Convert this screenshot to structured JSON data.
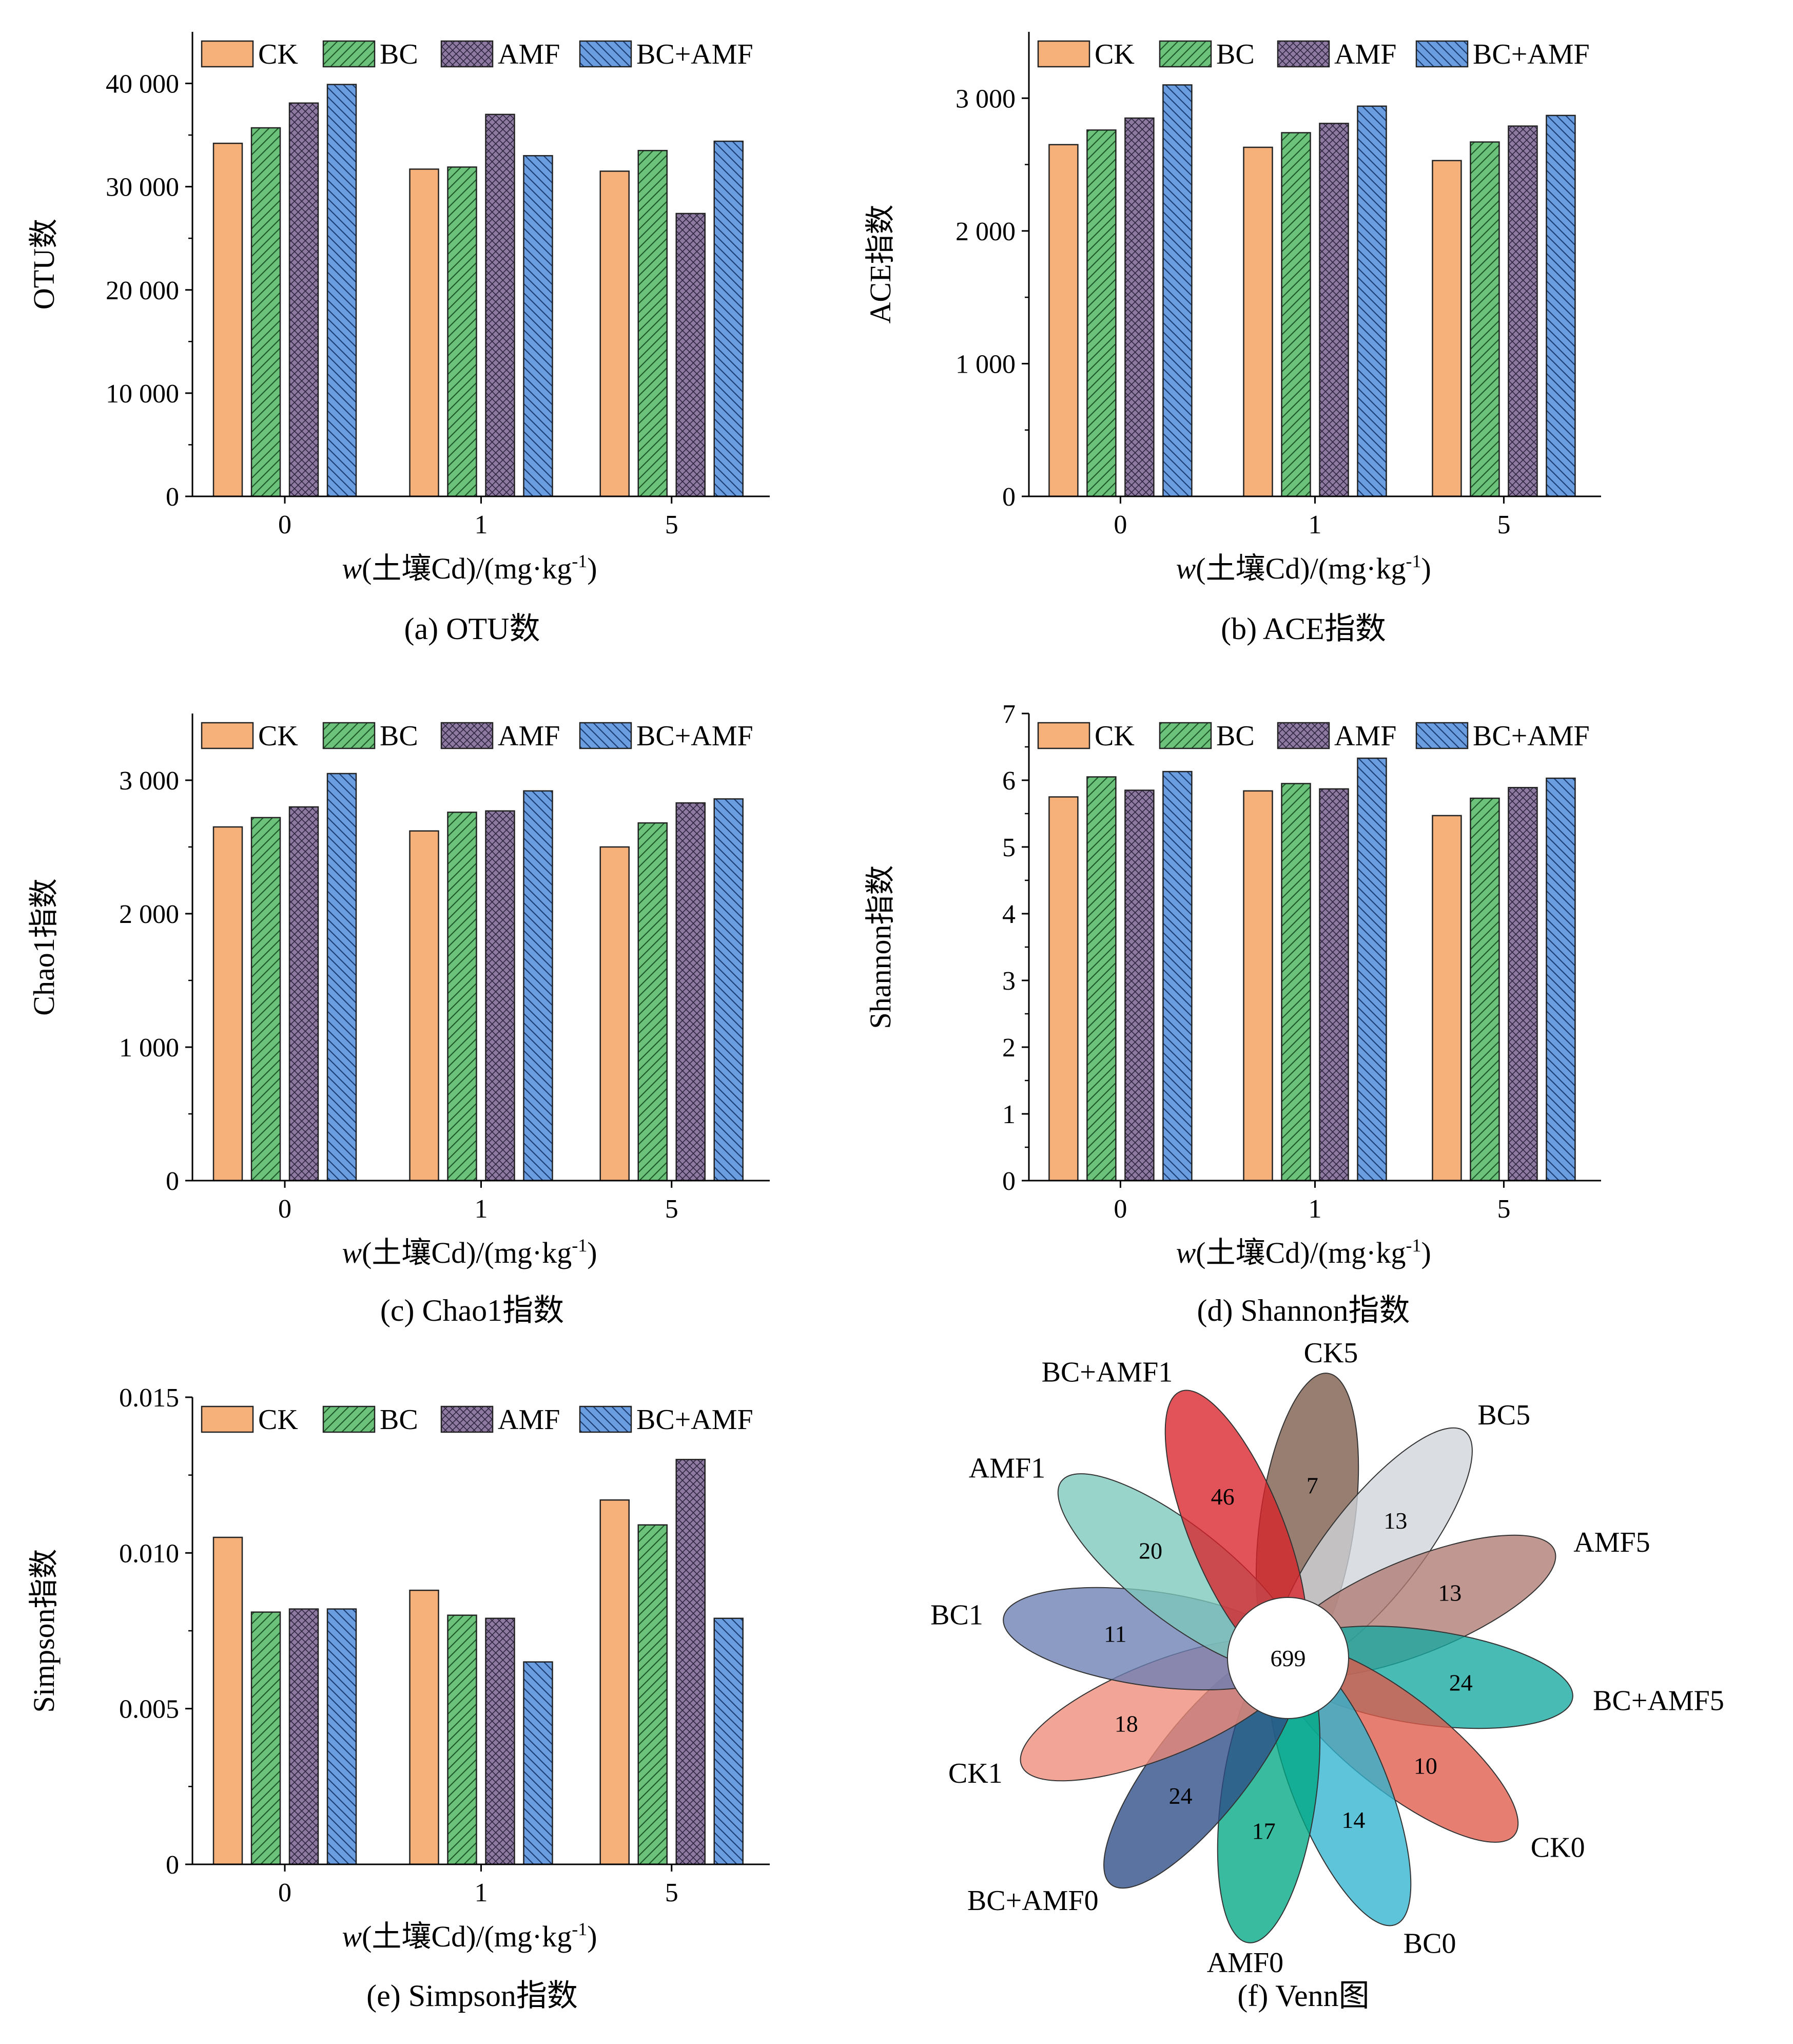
{
  "colors": {
    "CK": "#f6b07a",
    "BC": "#6cc27b",
    "AMF": "#8e7aa0",
    "BC+AMF": "#6b9ee0"
  },
  "legend": [
    "CK",
    "BC",
    "AMF",
    "BC+AMF"
  ],
  "xlabel": {
    "var": "w",
    "text": "(土壤Cd)/(mg·kg",
    "sup": "-1",
    "close": ")"
  },
  "chart_data": [
    {
      "type": "bar",
      "caption": "(a) OTU数",
      "ylabel": "OTU数",
      "categories": [
        "0",
        "1",
        "5"
      ],
      "ylim": [
        0,
        45000
      ],
      "yticks": [
        0,
        10000,
        20000,
        30000,
        40000
      ],
      "ytick_labels": [
        "0",
        "10 000",
        "20 000",
        "30 000",
        "40 000"
      ],
      "series": [
        {
          "name": "CK",
          "values": [
            34200,
            31700,
            31500
          ]
        },
        {
          "name": "BC",
          "values": [
            35700,
            31900,
            33500
          ]
        },
        {
          "name": "AMF",
          "values": [
            38100,
            37000,
            27400
          ]
        },
        {
          "name": "BC+AMF",
          "values": [
            39900,
            33000,
            34400
          ]
        }
      ]
    },
    {
      "type": "bar",
      "caption": "(b) ACE指数",
      "ylabel": "ACE指数",
      "categories": [
        "0",
        "1",
        "5"
      ],
      "ylim": [
        0,
        3500
      ],
      "yticks": [
        0,
        1000,
        2000,
        3000
      ],
      "ytick_labels": [
        "0",
        "1 000",
        "2 000",
        "3 000"
      ],
      "series": [
        {
          "name": "CK",
          "values": [
            2650,
            2630,
            2530
          ]
        },
        {
          "name": "BC",
          "values": [
            2760,
            2740,
            2670
          ]
        },
        {
          "name": "AMF",
          "values": [
            2850,
            2810,
            2790
          ]
        },
        {
          "name": "BC+AMF",
          "values": [
            3100,
            2940,
            2870
          ]
        }
      ]
    },
    {
      "type": "bar",
      "caption": "(c) Chao1指数",
      "ylabel": "Chao1指数",
      "categories": [
        "0",
        "1",
        "5"
      ],
      "ylim": [
        0,
        3500
      ],
      "yticks": [
        0,
        1000,
        2000,
        3000
      ],
      "ytick_labels": [
        "0",
        "1 000",
        "2 000",
        "3 000"
      ],
      "series": [
        {
          "name": "CK",
          "values": [
            2650,
            2620,
            2500
          ]
        },
        {
          "name": "BC",
          "values": [
            2720,
            2760,
            2680
          ]
        },
        {
          "name": "AMF",
          "values": [
            2800,
            2770,
            2830
          ]
        },
        {
          "name": "BC+AMF",
          "values": [
            3050,
            2920,
            2860
          ]
        }
      ]
    },
    {
      "type": "bar",
      "caption": "(d) Shannon指数",
      "ylabel": "Shannon指数",
      "categories": [
        "0",
        "1",
        "5"
      ],
      "ylim": [
        0,
        7
      ],
      "yticks": [
        0,
        1,
        2,
        3,
        4,
        5,
        6,
        7
      ],
      "ytick_labels": [
        "0",
        "1",
        "2",
        "3",
        "4",
        "5",
        "6",
        "7"
      ],
      "series": [
        {
          "name": "CK",
          "values": [
            5.75,
            5.84,
            5.47
          ]
        },
        {
          "name": "BC",
          "values": [
            6.05,
            5.95,
            5.73
          ]
        },
        {
          "name": "AMF",
          "values": [
            5.85,
            5.87,
            5.89
          ]
        },
        {
          "name": "BC+AMF",
          "values": [
            6.13,
            6.33,
            6.03
          ]
        }
      ]
    },
    {
      "type": "bar",
      "caption": "(e) Simpson指数",
      "ylabel": "Simpson指数",
      "categories": [
        "0",
        "1",
        "5"
      ],
      "ylim": [
        0,
        0.015
      ],
      "yticks": [
        0,
        0.005,
        0.01,
        0.015
      ],
      "ytick_labels": [
        "0",
        "0.005",
        "0.010",
        "0.015"
      ],
      "series": [
        {
          "name": "CK",
          "values": [
            0.0105,
            0.0088,
            0.0117
          ]
        },
        {
          "name": "BC",
          "values": [
            0.0081,
            0.008,
            0.0109
          ]
        },
        {
          "name": "AMF",
          "values": [
            0.0082,
            0.0079,
            0.013
          ]
        },
        {
          "name": "BC+AMF",
          "values": [
            0.0082,
            0.0065,
            0.0079
          ]
        }
      ]
    },
    {
      "type": "venn",
      "caption": "(f) Venn图",
      "core": 699,
      "sets": [
        {
          "name": "CK5",
          "unique": 7,
          "color": "#7a5a48"
        },
        {
          "name": "BC5",
          "unique": 13,
          "color": "#cfd3da"
        },
        {
          "name": "AMF5",
          "unique": 13,
          "color": "#b07a72"
        },
        {
          "name": "BC+AMF5",
          "unique": 24,
          "color": "#16a8a0"
        },
        {
          "name": "CK0",
          "unique": 10,
          "color": "#e05a4a"
        },
        {
          "name": "BC0",
          "unique": 14,
          "color": "#2fb4cf"
        },
        {
          "name": "AMF0",
          "unique": 17,
          "color": "#00a884"
        },
        {
          "name": "BC+AMF0",
          "unique": 24,
          "color": "#2d4c86"
        },
        {
          "name": "CK1",
          "unique": 18,
          "color": "#ee8a78"
        },
        {
          "name": "BC1",
          "unique": 11,
          "color": "#6b7fb3"
        },
        {
          "name": "AMF1",
          "unique": 20,
          "color": "#7cc8bc"
        },
        {
          "name": "BC+AMF1",
          "unique": 46,
          "color": "#d8232a"
        }
      ]
    }
  ]
}
